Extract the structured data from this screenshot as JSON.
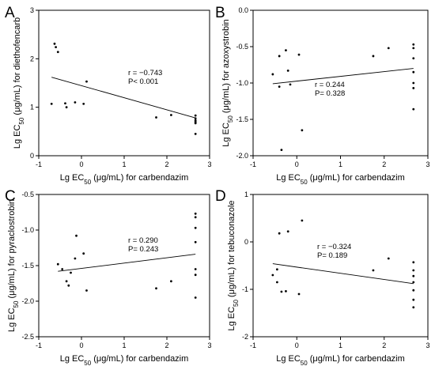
{
  "chart_data": [
    {
      "panel": "A",
      "type": "scatter",
      "xlabel": "Lg EC50 (μg/mL) for carbendazim",
      "ylabel": "Lg EC50 (μg/mL) for diethofencarb",
      "xlim": [
        -1,
        3
      ],
      "ylim": [
        0,
        3
      ],
      "xticks": [
        "-1",
        "0",
        "1",
        "2",
        "3"
      ],
      "yticks": [
        "0",
        "1",
        "2",
        "3"
      ],
      "annotation": [
        "r = −0.743",
        "P< 0.001"
      ],
      "points": [
        {
          "x": -0.63,
          "y": 2.31
        },
        {
          "x": -0.6,
          "y": 2.24
        },
        {
          "x": -0.55,
          "y": 2.14
        },
        {
          "x": -0.7,
          "y": 1.07
        },
        {
          "x": -0.38,
          "y": 1.08
        },
        {
          "x": -0.35,
          "y": 1.0
        },
        {
          "x": -0.15,
          "y": 1.1
        },
        {
          "x": 0.05,
          "y": 1.07
        },
        {
          "x": 0.12,
          "y": 1.53
        },
        {
          "x": 1.75,
          "y": 0.79
        },
        {
          "x": 2.1,
          "y": 0.84
        },
        {
          "x": 2.67,
          "y": 0.83
        },
        {
          "x": 2.67,
          "y": 0.77
        },
        {
          "x": 2.67,
          "y": 0.73
        },
        {
          "x": 2.67,
          "y": 0.7
        },
        {
          "x": 2.67,
          "y": 0.67
        },
        {
          "x": 2.67,
          "y": 0.45
        }
      ],
      "fit": [
        [
          -0.7,
          1.62
        ],
        [
          2.67,
          0.78
        ]
      ]
    },
    {
      "panel": "B",
      "type": "scatter",
      "xlabel": "Lg EC50 (μg/mL) for carbendazim",
      "ylabel": "Lg EC50 (μg/mL) for azoxystrobin",
      "xlim": [
        -1,
        3
      ],
      "ylim": [
        -2.0,
        0.0
      ],
      "xticks": [
        "-1",
        "0",
        "1",
        "2",
        "3"
      ],
      "yticks": [
        "-2.0",
        "-1.5",
        "-1.0",
        "-0.5",
        "0.0"
      ],
      "annotation": [
        "r = 0.244",
        "P= 0.328"
      ],
      "points": [
        {
          "x": -0.55,
          "y": -0.88
        },
        {
          "x": -0.4,
          "y": -0.63
        },
        {
          "x": -0.25,
          "y": -0.55
        },
        {
          "x": -0.2,
          "y": -0.83
        },
        {
          "x": -0.15,
          "y": -1.02
        },
        {
          "x": -0.4,
          "y": -1.05
        },
        {
          "x": 0.05,
          "y": -0.61
        },
        {
          "x": 0.12,
          "y": -1.65
        },
        {
          "x": -0.35,
          "y": -1.92
        },
        {
          "x": 1.75,
          "y": -0.63
        },
        {
          "x": 2.1,
          "y": -0.52
        },
        {
          "x": 2.67,
          "y": -0.47
        },
        {
          "x": 2.67,
          "y": -0.52
        },
        {
          "x": 2.67,
          "y": -0.66
        },
        {
          "x": 2.67,
          "y": -0.85
        },
        {
          "x": 2.67,
          "y": -1.0
        },
        {
          "x": 2.67,
          "y": -1.07
        },
        {
          "x": 2.67,
          "y": -1.36
        }
      ],
      "fit": [
        [
          -0.55,
          -1.01
        ],
        [
          2.67,
          -0.8
        ]
      ]
    },
    {
      "panel": "C",
      "type": "scatter",
      "xlabel": "Lg EC50 (μg/mL) for carbendazim",
      "ylabel": "Lg EC50 (μg/mL) for pyraclostrobin",
      "xlim": [
        -1,
        3
      ],
      "ylim": [
        -2.5,
        -0.5
      ],
      "xticks": [
        "-1",
        "0",
        "1",
        "2",
        "3"
      ],
      "yticks": [
        "-2.5",
        "-2.0",
        "-1.5",
        "-1.0",
        "-0.5"
      ],
      "annotation": [
        "r = 0.290",
        "P= 0.243"
      ],
      "points": [
        {
          "x": -0.55,
          "y": -1.48
        },
        {
          "x": -0.45,
          "y": -1.55
        },
        {
          "x": -0.35,
          "y": -1.72
        },
        {
          "x": -0.3,
          "y": -1.78
        },
        {
          "x": -0.25,
          "y": -1.6
        },
        {
          "x": -0.15,
          "y": -1.4
        },
        {
          "x": -0.12,
          "y": -1.08
        },
        {
          "x": 0.05,
          "y": -1.33
        },
        {
          "x": 0.12,
          "y": -1.85
        },
        {
          "x": 1.75,
          "y": -1.82
        },
        {
          "x": 2.1,
          "y": -1.72
        },
        {
          "x": 2.67,
          "y": -0.77
        },
        {
          "x": 2.67,
          "y": -0.82
        },
        {
          "x": 2.67,
          "y": -0.97
        },
        {
          "x": 2.67,
          "y": -1.17
        },
        {
          "x": 2.67,
          "y": -1.55
        },
        {
          "x": 2.67,
          "y": -1.63
        },
        {
          "x": 2.67,
          "y": -1.95
        }
      ],
      "fit": [
        [
          -0.55,
          -1.58
        ],
        [
          2.67,
          -1.34
        ]
      ]
    },
    {
      "panel": "D",
      "type": "scatter",
      "xlabel": "Lg EC50 (μg/mL) for carbendazim",
      "ylabel": "Lg EC50 (μg/mL) for tebuconazole",
      "xlim": [
        -1,
        3
      ],
      "ylim": [
        -2,
        1
      ],
      "xticks": [
        "-1",
        "0",
        "1",
        "2",
        "3"
      ],
      "yticks": [
        "-2",
        "-1",
        "0",
        "1"
      ],
      "annotation": [
        "r = −0.324",
        "P= 0.189"
      ],
      "points": [
        {
          "x": -0.55,
          "y": -0.7
        },
        {
          "x": -0.45,
          "y": -0.85
        },
        {
          "x": -0.4,
          "y": 0.18
        },
        {
          "x": -0.35,
          "y": -1.05
        },
        {
          "x": -0.25,
          "y": -1.04
        },
        {
          "x": -0.2,
          "y": 0.22
        },
        {
          "x": -0.45,
          "y": -0.58
        },
        {
          "x": 0.05,
          "y": -1.1
        },
        {
          "x": 0.12,
          "y": 0.45
        },
        {
          "x": 1.75,
          "y": -0.6
        },
        {
          "x": 2.1,
          "y": -0.35
        },
        {
          "x": 2.67,
          "y": -0.43
        },
        {
          "x": 2.67,
          "y": -0.6
        },
        {
          "x": 2.67,
          "y": -0.72
        },
        {
          "x": 2.67,
          "y": -0.85
        },
        {
          "x": 2.67,
          "y": -1.02
        },
        {
          "x": 2.67,
          "y": -1.22
        },
        {
          "x": 2.67,
          "y": -1.38
        }
      ],
      "fit": [
        [
          -0.55,
          -0.46
        ],
        [
          2.67,
          -0.88
        ]
      ]
    }
  ]
}
